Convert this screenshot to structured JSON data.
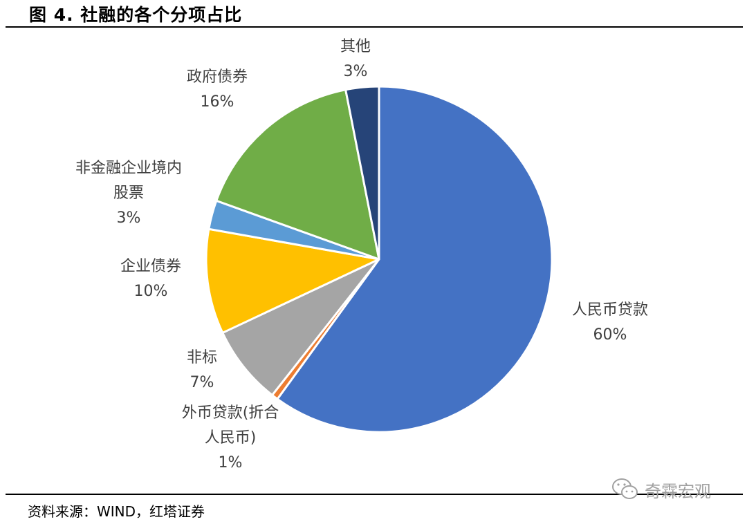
{
  "figure": {
    "title": "图 4. 社融的各个分项占比",
    "source": "资料来源：WIND，红塔证券",
    "watermark": "奇霖宏观",
    "watermark_icon": "wechat-icon"
  },
  "chart_data": {
    "type": "pie",
    "title": "",
    "start_angle_deg": 0,
    "direction": "clockwise",
    "slices": [
      {
        "label": "人民币贷款",
        "label_lines": [
          "人民币贷款"
        ],
        "percent_text": "60%",
        "value": 60,
        "color": "#4472C4"
      },
      {
        "label": "外币贷款(折合人民币)",
        "label_lines": [
          "外币贷款(折合",
          "人民币)"
        ],
        "percent_text": "1%",
        "value": 0.6,
        "color": "#ED7D31"
      },
      {
        "label": "非标",
        "label_lines": [
          "非标"
        ],
        "percent_text": "7%",
        "value": 7.4,
        "color": "#A5A5A5"
      },
      {
        "label": "企业债券",
        "label_lines": [
          "企业债券"
        ],
        "percent_text": "10%",
        "value": 9.8,
        "color": "#FFC000"
      },
      {
        "label": "非金融企业境内股票",
        "label_lines": [
          "非金融企业境内",
          "股票"
        ],
        "percent_text": "3%",
        "value": 2.7,
        "color": "#5B9BD5"
      },
      {
        "label": "政府债券",
        "label_lines": [
          "政府债券"
        ],
        "percent_text": "16%",
        "value": 16.4,
        "color": "#70AD47"
      },
      {
        "label": "其他",
        "label_lines": [
          "其他"
        ],
        "percent_text": "3%",
        "value": 3.1,
        "color": "#264478"
      }
    ]
  }
}
